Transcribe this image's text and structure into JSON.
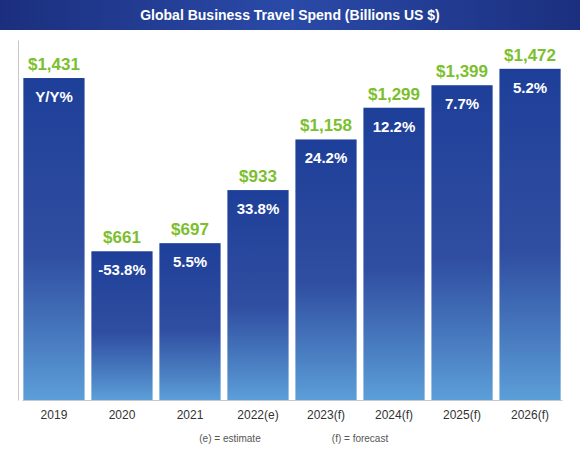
{
  "chart_data": {
    "type": "bar",
    "title": "Global Business Travel Spend (Billions US $)",
    "categories": [
      "2019",
      "2020",
      "2021",
      "2022(e)",
      "2023(f)",
      "2024(f)",
      "2025(f)",
      "2026(f)"
    ],
    "values": [
      1431,
      661,
      697,
      933,
      1158,
      1299,
      1399,
      1472
    ],
    "value_labels": [
      "$1,431",
      "$661",
      "$697",
      "$933",
      "$1,158",
      "$1,299",
      "$1,399",
      "$1,472"
    ],
    "yoy": {
      "header": "Y/Y%",
      "values": [
        null,
        -53.8,
        5.5,
        33.8,
        24.2,
        12.2,
        7.7,
        5.2
      ],
      "value_labels": [
        null,
        "-53.8%",
        "5.5%",
        "33.8%",
        "24.2%",
        "12.2%",
        "7.7%",
        "5.2%"
      ]
    },
    "annotations": [
      "(e) = estimate",
      "(f) = forecast"
    ],
    "color": "#1e3f99",
    "ylim": [
      0,
      1600
    ],
    "yticks": [],
    "grid": false,
    "data_labels": true,
    "tick_labels": "x"
  }
}
